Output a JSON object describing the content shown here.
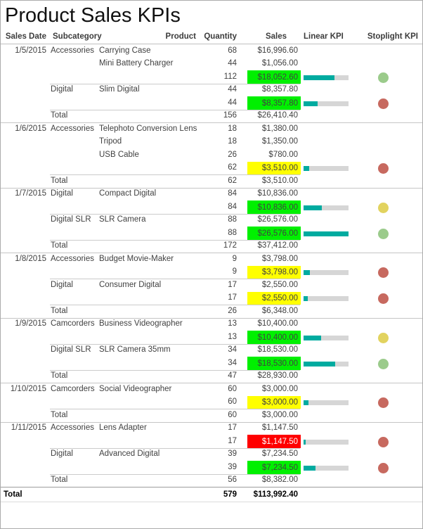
{
  "title": "Product Sales KPIs",
  "columns": [
    "Sales Date",
    "Subcategory",
    "Product",
    "Quantity",
    "Sales",
    "Linear KPI",
    "Stoplight KPI"
  ],
  "colors": {
    "status_green_bg": "#00F000",
    "status_yellow_bg": "#FFFF00",
    "status_red_bg": "#FF0000",
    "status_red_text": "#FFFFFF",
    "bar_fill": "#00ABA0",
    "bar_track": "#D6D6D6",
    "dot_green": "#9BCB8B",
    "dot_yellow": "#E2D35F",
    "dot_red": "#C7695F"
  },
  "groups": [
    {
      "date": "1/5/2015",
      "subgroups": [
        {
          "subcategory": "Accessories",
          "products": [
            {
              "product": "Carrying Case",
              "quantity": "68",
              "sales": "$16,996.60"
            },
            {
              "product": "Mini Battery Charger",
              "quantity": "44",
              "sales": "$1,056.00"
            }
          ],
          "subtotal": {
            "quantity": "112",
            "sales": "$18,052.60",
            "status": "green",
            "bar_pct": 68,
            "dot": "green"
          }
        },
        {
          "subcategory": "Digital",
          "products": [
            {
              "product": "Slim Digital",
              "quantity": "44",
              "sales": "$8,357.80"
            }
          ],
          "subtotal": {
            "quantity": "44",
            "sales": "$8,357.80",
            "status": "green",
            "bar_pct": 31,
            "dot": "red"
          }
        }
      ],
      "total": {
        "label": "Total",
        "quantity": "156",
        "sales": "$26,410.40"
      }
    },
    {
      "date": "1/6/2015",
      "subgroups": [
        {
          "subcategory": "Accessories",
          "products": [
            {
              "product": "Telephoto Conversion Lens",
              "quantity": "18",
              "sales": "$1,380.00"
            },
            {
              "product": "Tripod",
              "quantity": "18",
              "sales": "$1,350.00"
            },
            {
              "product": "USB Cable",
              "quantity": "26",
              "sales": "$780.00"
            }
          ],
          "subtotal": {
            "quantity": "62",
            "sales": "$3,510.00",
            "status": "yellow",
            "bar_pct": 13,
            "dot": "red"
          }
        }
      ],
      "total": {
        "label": "Total",
        "quantity": "62",
        "sales": "$3,510.00"
      }
    },
    {
      "date": "1/7/2015",
      "subgroups": [
        {
          "subcategory": "Digital",
          "products": [
            {
              "product": "Compact Digital",
              "quantity": "84",
              "sales": "$10,836.00"
            }
          ],
          "subtotal": {
            "quantity": "84",
            "sales": "$10,836.00",
            "status": "green",
            "bar_pct": 41,
            "dot": "yellow"
          }
        },
        {
          "subcategory": "Digital SLR",
          "products": [
            {
              "product": "SLR Camera",
              "quantity": "88",
              "sales": "$26,576.00"
            }
          ],
          "subtotal": {
            "quantity": "88",
            "sales": "$26,576.00",
            "status": "green",
            "bar_pct": 100,
            "dot": "green"
          }
        }
      ],
      "total": {
        "label": "Total",
        "quantity": "172",
        "sales": "$37,412.00"
      }
    },
    {
      "date": "1/8/2015",
      "subgroups": [
        {
          "subcategory": "Accessories",
          "products": [
            {
              "product": "Budget Movie-Maker",
              "quantity": "9",
              "sales": "$3,798.00"
            }
          ],
          "subtotal": {
            "quantity": "9",
            "sales": "$3,798.00",
            "status": "yellow",
            "bar_pct": 14,
            "dot": "red"
          }
        },
        {
          "subcategory": "Digital",
          "products": [
            {
              "product": "Consumer Digital",
              "quantity": "17",
              "sales": "$2,550.00"
            }
          ],
          "subtotal": {
            "quantity": "17",
            "sales": "$2,550.00",
            "status": "yellow",
            "bar_pct": 10,
            "dot": "red"
          }
        }
      ],
      "total": {
        "label": "Total",
        "quantity": "26",
        "sales": "$6,348.00"
      }
    },
    {
      "date": "1/9/2015",
      "subgroups": [
        {
          "subcategory": "Camcorders",
          "products": [
            {
              "product": "Business Videographer",
              "quantity": "13",
              "sales": "$10,400.00"
            }
          ],
          "subtotal": {
            "quantity": "13",
            "sales": "$10,400.00",
            "status": "green",
            "bar_pct": 39,
            "dot": "yellow"
          }
        },
        {
          "subcategory": "Digital SLR",
          "products": [
            {
              "product": "SLR Camera 35mm",
              "quantity": "34",
              "sales": "$18,530.00"
            }
          ],
          "subtotal": {
            "quantity": "34",
            "sales": "$18,530.00",
            "status": "green",
            "bar_pct": 70,
            "dot": "green"
          }
        }
      ],
      "total": {
        "label": "Total",
        "quantity": "47",
        "sales": "$28,930.00"
      }
    },
    {
      "date": "1/10/2015",
      "subgroups": [
        {
          "subcategory": "Camcorders",
          "products": [
            {
              "product": "Social Videographer",
              "quantity": "60",
              "sales": "$3,000.00"
            }
          ],
          "subtotal": {
            "quantity": "60",
            "sales": "$3,000.00",
            "status": "yellow",
            "bar_pct": 11,
            "dot": "red"
          }
        }
      ],
      "total": {
        "label": "Total",
        "quantity": "60",
        "sales": "$3,000.00"
      }
    },
    {
      "date": "1/11/2015",
      "subgroups": [
        {
          "subcategory": "Accessories",
          "products": [
            {
              "product": "Lens Adapter",
              "quantity": "17",
              "sales": "$1,147.50"
            }
          ],
          "subtotal": {
            "quantity": "17",
            "sales": "$1,147.50",
            "status": "red",
            "bar_pct": 4,
            "dot": "red"
          }
        },
        {
          "subcategory": "Digital",
          "products": [
            {
              "product": "Advanced Digital",
              "quantity": "39",
              "sales": "$7,234.50"
            }
          ],
          "subtotal": {
            "quantity": "39",
            "sales": "$7,234.50",
            "status": "green",
            "bar_pct": 27,
            "dot": "red"
          }
        }
      ],
      "total": {
        "label": "Total",
        "quantity": "56",
        "sales": "$8,382.00"
      }
    }
  ],
  "grand_total": {
    "label": "Total",
    "quantity": "579",
    "sales": "$113,992.40"
  }
}
